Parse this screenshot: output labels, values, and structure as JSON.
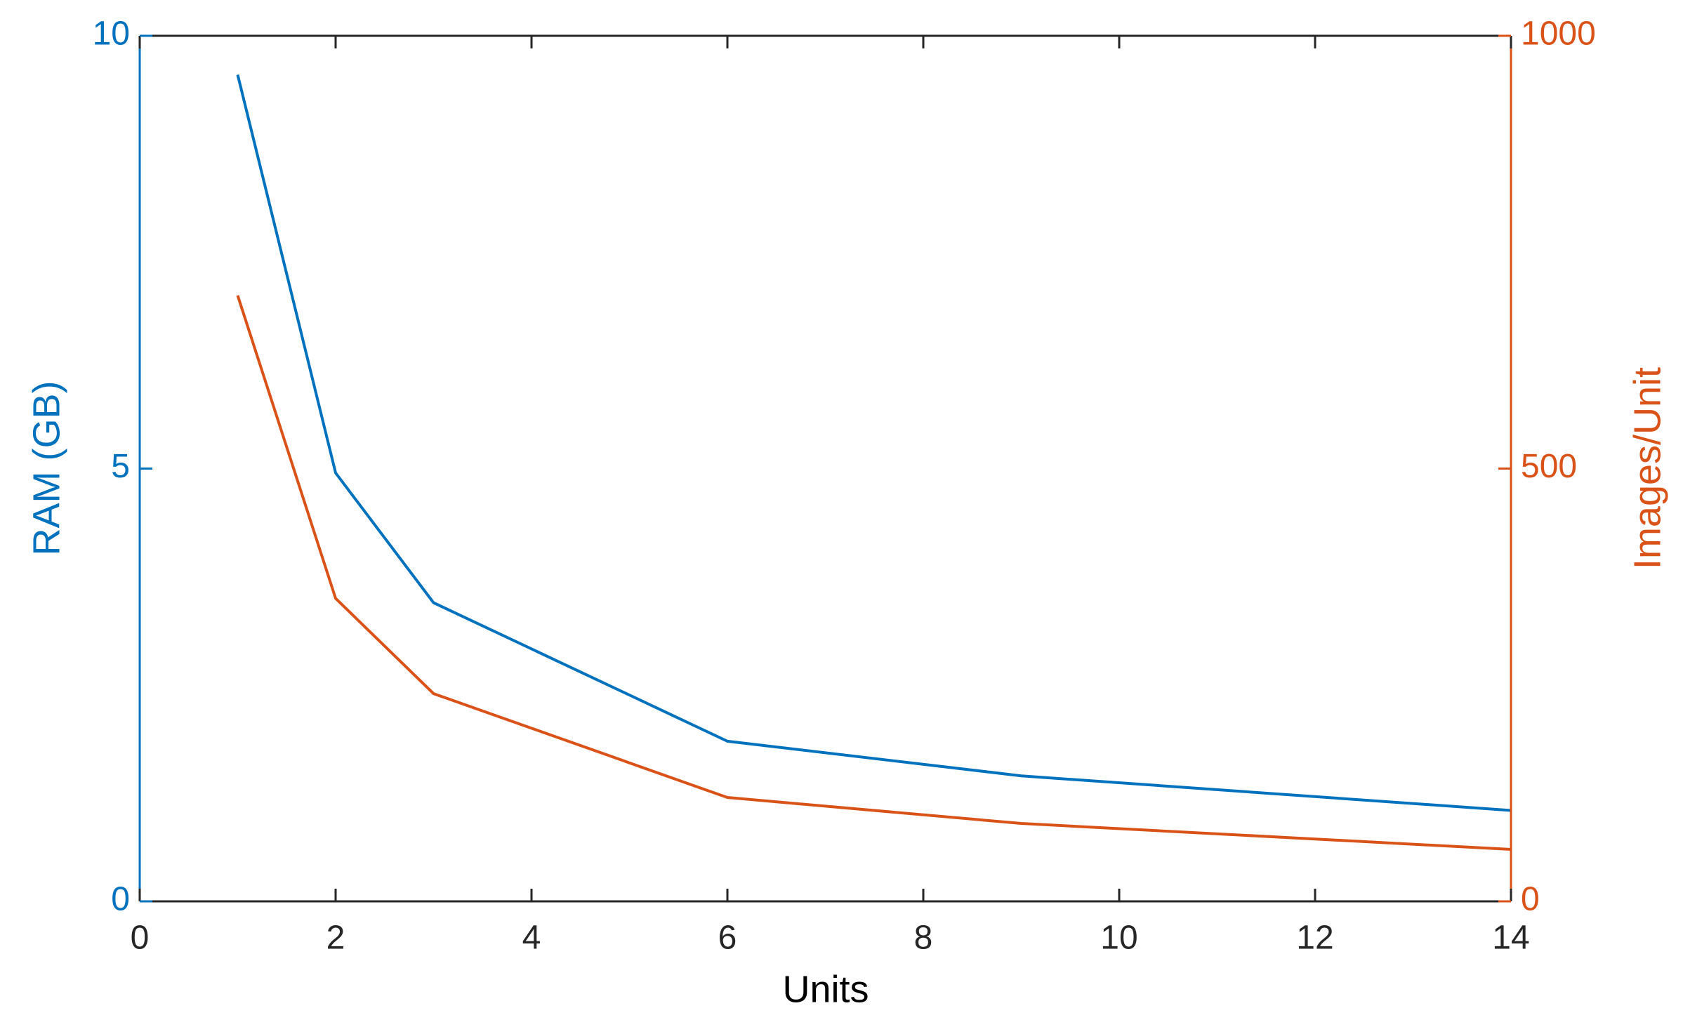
{
  "chart_data": {
    "type": "line",
    "x": [
      1,
      2,
      3,
      6,
      9,
      14
    ],
    "xlabel": "Units",
    "ylabel": "RAM (GB)",
    "y2label": "Images/Unit",
    "xlim": [
      0,
      14
    ],
    "xticks": [
      0,
      2,
      4,
      6,
      8,
      10,
      12,
      14
    ],
    "ylim": [
      0,
      10
    ],
    "yticks": [
      0,
      5,
      10
    ],
    "y2lim": [
      0,
      1000
    ],
    "y2ticks": [
      0,
      500,
      1000
    ],
    "series": [
      {
        "name": "RAM (GB)",
        "color": "#0072BD",
        "values": [
          9.55,
          4.95,
          3.45,
          1.85,
          1.45,
          1.05
        ]
      },
      {
        "name": "Images/Unit",
        "color": "#D95319",
        "axis": "y2",
        "values": [
          700,
          350,
          240,
          120,
          90,
          60
        ]
      }
    ]
  }
}
